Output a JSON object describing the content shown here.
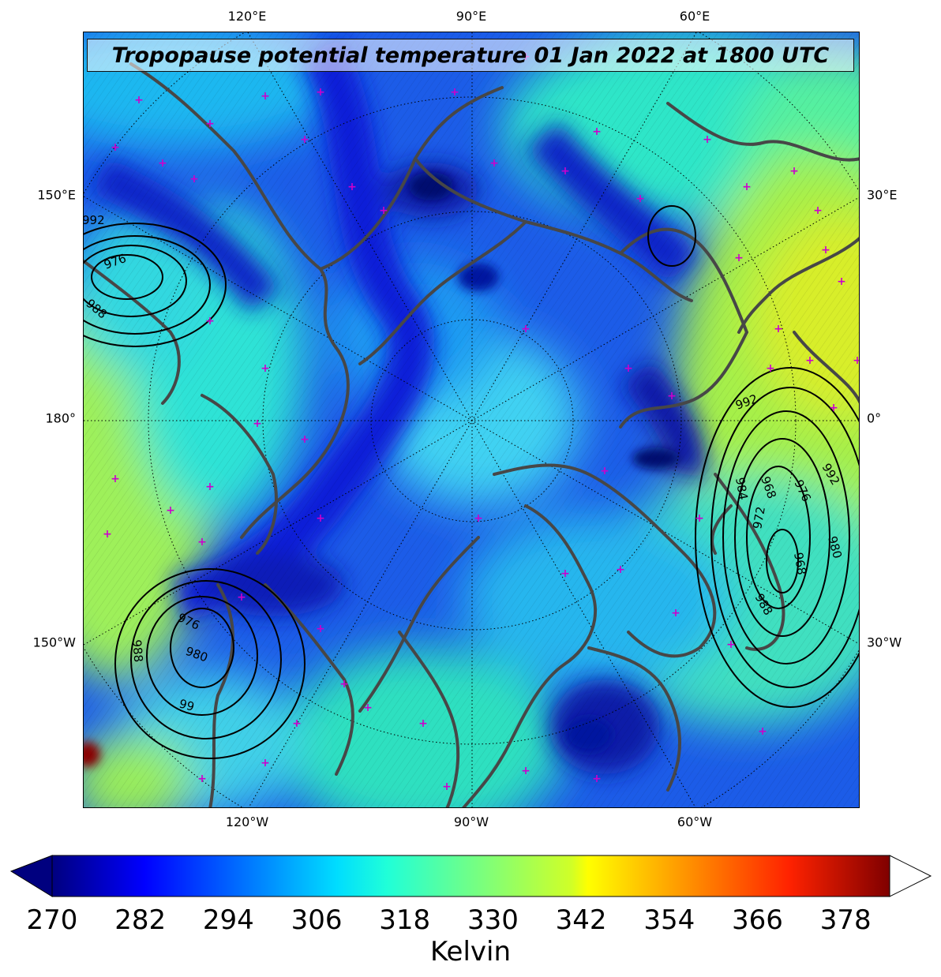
{
  "title": "Tropopause potential temperature 01 Jan 2022 at 1800 UTC",
  "map": {
    "projection": "north-polar-stereographic",
    "top_labels": [
      "120°E",
      "90°E",
      "60°E"
    ],
    "bottom_labels": [
      "120°W",
      "90°W",
      "60°W"
    ],
    "left_labels": [
      "150°E",
      "180°",
      "150°W"
    ],
    "right_labels": [
      "30°E",
      "0°",
      "30°W"
    ],
    "pressure_contour_labels": [
      {
        "text": "992",
        "region": "north-pacific-left"
      },
      {
        "text": "976",
        "region": "north-pacific-left"
      },
      {
        "text": "988",
        "region": "north-pacific-left"
      },
      {
        "text": "992",
        "region": "north-atlantic-right"
      },
      {
        "text": "984",
        "region": "north-atlantic-right"
      },
      {
        "text": "968",
        "region": "north-atlantic-right"
      },
      {
        "text": "976",
        "region": "north-atlantic-right"
      },
      {
        "text": "992",
        "region": "north-atlantic-right"
      },
      {
        "text": "972",
        "region": "north-atlantic-right"
      },
      {
        "text": "968",
        "region": "north-atlantic-right"
      },
      {
        "text": "980",
        "region": "north-atlantic-right"
      },
      {
        "text": "988",
        "region": "north-atlantic-right"
      },
      {
        "text": "976",
        "region": "gulf-of-alaska"
      },
      {
        "text": "980",
        "region": "gulf-of-alaska"
      },
      {
        "text": "988",
        "region": "gulf-of-alaska"
      },
      {
        "text": "99",
        "region": "gulf-of-alaska"
      }
    ],
    "colors": {
      "coastline": "#474747",
      "low_markers": "#cc00cc",
      "pressure_contours": "#000000"
    }
  },
  "colorbar": {
    "label": "Kelvin",
    "min": 270,
    "max": 384,
    "ticks": [
      "270",
      "282",
      "294",
      "306",
      "318",
      "330",
      "342",
      "354",
      "366",
      "378"
    ],
    "extend": "both",
    "colormap": "jet"
  }
}
